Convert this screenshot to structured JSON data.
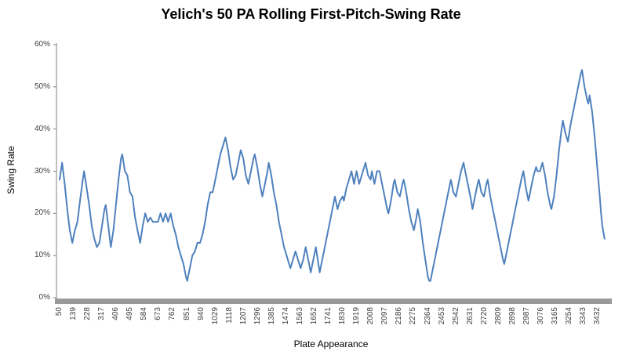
{
  "chart_data": {
    "type": "line",
    "title": "Yelich's 50 PA Rolling First-Pitch-Swing Rate",
    "xlabel": "Plate Appearance",
    "ylabel": "Swing Rate",
    "ylim": [
      0,
      60
    ],
    "xlim": [
      50,
      3480
    ],
    "grid": false,
    "legend": "none",
    "y_tick_labels": [
      "0%",
      "10%",
      "20%",
      "30%",
      "40%",
      "50%",
      "60%"
    ],
    "x_tick_labels": [
      "50",
      "139",
      "228",
      "317",
      "406",
      "495",
      "584",
      "673",
      "762",
      "851",
      "940",
      "1029",
      "1118",
      "1207",
      "1296",
      "1385",
      "1474",
      "1563",
      "1652",
      "1741",
      "1830",
      "1919",
      "2008",
      "2097",
      "2186",
      "2275",
      "2364",
      "2453",
      "2542",
      "2631",
      "2720",
      "2809",
      "2898",
      "2987",
      "3076",
      "3165",
      "3254",
      "3343",
      "3432"
    ],
    "line_color": "#4F81BD",
    "axis_color": "#808080",
    "axis_bar_color": "#999999",
    "tick_text_color": "#404040",
    "series": [
      {
        "name": "50 PA rolling first-pitch-swing rate (%)",
        "points": [
          [
            50,
            28
          ],
          [
            66,
            32
          ],
          [
            82,
            27
          ],
          [
            98,
            21
          ],
          [
            114,
            16
          ],
          [
            130,
            13
          ],
          [
            146,
            16
          ],
          [
            162,
            18
          ],
          [
            178,
            23
          ],
          [
            196,
            28
          ],
          [
            204,
            30
          ],
          [
            220,
            26
          ],
          [
            236,
            22
          ],
          [
            252,
            17
          ],
          [
            268,
            14
          ],
          [
            284,
            12
          ],
          [
            300,
            13
          ],
          [
            316,
            17
          ],
          [
            332,
            21
          ],
          [
            340,
            22
          ],
          [
            356,
            17
          ],
          [
            372,
            12
          ],
          [
            388,
            16
          ],
          [
            404,
            22
          ],
          [
            420,
            28
          ],
          [
            436,
            33
          ],
          [
            444,
            34
          ],
          [
            460,
            30
          ],
          [
            476,
            29
          ],
          [
            492,
            25
          ],
          [
            508,
            24
          ],
          [
            524,
            19
          ],
          [
            540,
            16
          ],
          [
            556,
            13
          ],
          [
            572,
            17
          ],
          [
            588,
            20
          ],
          [
            604,
            18
          ],
          [
            620,
            19
          ],
          [
            636,
            18
          ],
          [
            652,
            18
          ],
          [
            668,
            18
          ],
          [
            684,
            20
          ],
          [
            700,
            18
          ],
          [
            716,
            20
          ],
          [
            732,
            18
          ],
          [
            748,
            20
          ],
          [
            764,
            17
          ],
          [
            780,
            15
          ],
          [
            796,
            12
          ],
          [
            812,
            10
          ],
          [
            828,
            8
          ],
          [
            844,
            5
          ],
          [
            852,
            4
          ],
          [
            868,
            7
          ],
          [
            884,
            10
          ],
          [
            900,
            11
          ],
          [
            916,
            13
          ],
          [
            932,
            13
          ],
          [
            948,
            15
          ],
          [
            964,
            18
          ],
          [
            980,
            22
          ],
          [
            996,
            25
          ],
          [
            1012,
            25
          ],
          [
            1028,
            28
          ],
          [
            1044,
            31
          ],
          [
            1060,
            34
          ],
          [
            1076,
            36
          ],
          [
            1092,
            38
          ],
          [
            1108,
            35
          ],
          [
            1124,
            31
          ],
          [
            1140,
            28
          ],
          [
            1156,
            29
          ],
          [
            1172,
            32
          ],
          [
            1188,
            35
          ],
          [
            1204,
            33
          ],
          [
            1220,
            29
          ],
          [
            1236,
            27
          ],
          [
            1252,
            30
          ],
          [
            1268,
            33
          ],
          [
            1276,
            34
          ],
          [
            1292,
            31
          ],
          [
            1308,
            27
          ],
          [
            1324,
            24
          ],
          [
            1340,
            27
          ],
          [
            1356,
            30
          ],
          [
            1364,
            32
          ],
          [
            1380,
            29
          ],
          [
            1396,
            25
          ],
          [
            1412,
            22
          ],
          [
            1428,
            18
          ],
          [
            1444,
            15
          ],
          [
            1460,
            12
          ],
          [
            1476,
            10
          ],
          [
            1492,
            8
          ],
          [
            1500,
            7
          ],
          [
            1516,
            9
          ],
          [
            1532,
            11
          ],
          [
            1548,
            9
          ],
          [
            1564,
            7
          ],
          [
            1580,
            9
          ],
          [
            1596,
            12
          ],
          [
            1612,
            9
          ],
          [
            1628,
            6
          ],
          [
            1644,
            9
          ],
          [
            1660,
            12
          ],
          [
            1676,
            8
          ],
          [
            1684,
            6
          ],
          [
            1700,
            9
          ],
          [
            1716,
            12
          ],
          [
            1732,
            15
          ],
          [
            1748,
            18
          ],
          [
            1764,
            21
          ],
          [
            1780,
            24
          ],
          [
            1796,
            21
          ],
          [
            1812,
            23
          ],
          [
            1828,
            24
          ],
          [
            1836,
            23
          ],
          [
            1852,
            26
          ],
          [
            1868,
            28
          ],
          [
            1884,
            30
          ],
          [
            1900,
            27
          ],
          [
            1916,
            30
          ],
          [
            1932,
            27
          ],
          [
            1948,
            29
          ],
          [
            1964,
            31
          ],
          [
            1972,
            32
          ],
          [
            1988,
            29
          ],
          [
            2004,
            28
          ],
          [
            2012,
            30
          ],
          [
            2028,
            27
          ],
          [
            2044,
            30
          ],
          [
            2060,
            30
          ],
          [
            2076,
            27
          ],
          [
            2092,
            24
          ],
          [
            2108,
            21
          ],
          [
            2116,
            20
          ],
          [
            2132,
            23
          ],
          [
            2148,
            27
          ],
          [
            2156,
            28
          ],
          [
            2172,
            25
          ],
          [
            2188,
            24
          ],
          [
            2204,
            27
          ],
          [
            2212,
            28
          ],
          [
            2228,
            25
          ],
          [
            2244,
            21
          ],
          [
            2260,
            18
          ],
          [
            2276,
            16
          ],
          [
            2292,
            19
          ],
          [
            2300,
            21
          ],
          [
            2316,
            18
          ],
          [
            2332,
            13
          ],
          [
            2348,
            9
          ],
          [
            2364,
            5
          ],
          [
            2372,
            4
          ],
          [
            2380,
            4
          ],
          [
            2396,
            7
          ],
          [
            2412,
            10
          ],
          [
            2428,
            13
          ],
          [
            2444,
            16
          ],
          [
            2460,
            19
          ],
          [
            2476,
            22
          ],
          [
            2492,
            25
          ],
          [
            2508,
            28
          ],
          [
            2524,
            25
          ],
          [
            2540,
            24
          ],
          [
            2556,
            27
          ],
          [
            2572,
            30
          ],
          [
            2588,
            32
          ],
          [
            2604,
            29
          ],
          [
            2620,
            26
          ],
          [
            2636,
            23
          ],
          [
            2644,
            21
          ],
          [
            2660,
            24
          ],
          [
            2676,
            27
          ],
          [
            2684,
            28
          ],
          [
            2700,
            25
          ],
          [
            2716,
            24
          ],
          [
            2732,
            27
          ],
          [
            2740,
            28
          ],
          [
            2756,
            24
          ],
          [
            2772,
            21
          ],
          [
            2788,
            18
          ],
          [
            2804,
            15
          ],
          [
            2820,
            12
          ],
          [
            2836,
            9
          ],
          [
            2844,
            8
          ],
          [
            2860,
            11
          ],
          [
            2876,
            14
          ],
          [
            2892,
            17
          ],
          [
            2908,
            20
          ],
          [
            2924,
            23
          ],
          [
            2940,
            26
          ],
          [
            2956,
            29
          ],
          [
            2964,
            30
          ],
          [
            2980,
            26
          ],
          [
            2996,
            23
          ],
          [
            3012,
            26
          ],
          [
            3028,
            29
          ],
          [
            3044,
            31
          ],
          [
            3052,
            30
          ],
          [
            3068,
            30
          ],
          [
            3084,
            32
          ],
          [
            3100,
            29
          ],
          [
            3116,
            25
          ],
          [
            3132,
            22
          ],
          [
            3140,
            21
          ],
          [
            3156,
            24
          ],
          [
            3172,
            29
          ],
          [
            3188,
            35
          ],
          [
            3204,
            40
          ],
          [
            3212,
            42
          ],
          [
            3228,
            39
          ],
          [
            3244,
            37
          ],
          [
            3260,
            41
          ],
          [
            3276,
            44
          ],
          [
            3292,
            47
          ],
          [
            3308,
            50
          ],
          [
            3324,
            53
          ],
          [
            3332,
            54
          ],
          [
            3348,
            50
          ],
          [
            3364,
            47
          ],
          [
            3372,
            46
          ],
          [
            3380,
            48
          ],
          [
            3396,
            44
          ],
          [
            3412,
            38
          ],
          [
            3428,
            31
          ],
          [
            3444,
            24
          ],
          [
            3452,
            20
          ],
          [
            3460,
            17
          ],
          [
            3474,
            14
          ]
        ]
      }
    ]
  }
}
